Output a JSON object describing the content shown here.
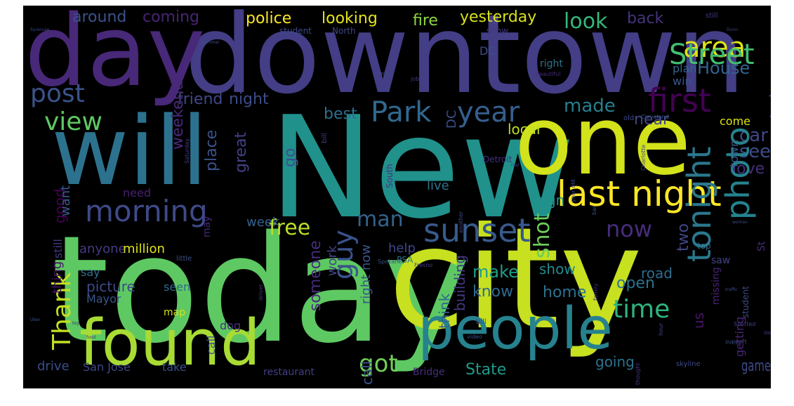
{
  "background_color": "#000000",
  "palette": [
    "#440154",
    "#3b528b",
    "#21918c",
    "#5ec962",
    "#fde725"
  ],
  "words": [
    {
      "text": "today",
      "color": "#5ec962"
    },
    {
      "text": "city",
      "color": "#c7e020"
    },
    {
      "text": "New",
      "color": "#21918c"
    },
    {
      "text": "downtown",
      "color": "#433e85"
    },
    {
      "text": "day",
      "color": "#482878"
    },
    {
      "text": "will",
      "color": "#2c728e"
    },
    {
      "text": "one",
      "color": "#d2e21b"
    },
    {
      "text": "found",
      "color": "#a8db34"
    },
    {
      "text": "people",
      "color": "#26828e"
    },
    {
      "text": "last night",
      "color": "#fde725"
    },
    {
      "text": "morning",
      "color": "#3e4a89"
    },
    {
      "text": "sunset",
      "color": "#38598c"
    },
    {
      "text": "Park",
      "color": "#31688e"
    },
    {
      "text": "year",
      "color": "#355f8d"
    },
    {
      "text": "first",
      "color": "#440154"
    },
    {
      "text": "area",
      "color": "#dde318"
    },
    {
      "text": "Street",
      "color": "#42be71"
    },
    {
      "text": "post",
      "color": "#3b528b"
    },
    {
      "text": "view",
      "color": "#5ec962"
    },
    {
      "text": "tonight",
      "color": "#2a788e"
    },
    {
      "text": "now",
      "color": "#472c7a"
    },
    {
      "text": "photo",
      "color": "#25838e"
    },
    {
      "text": "time",
      "color": "#2fb47c"
    },
    {
      "text": "guy",
      "color": "#3a538b"
    },
    {
      "text": "got",
      "color": "#70cf57"
    },
    {
      "text": "Thank",
      "color": "#c2df23"
    },
    {
      "text": "free",
      "color": "#bade28"
    },
    {
      "text": "man",
      "color": "#33638d"
    },
    {
      "text": "shot",
      "color": "#6ccd5a"
    },
    {
      "text": "look",
      "color": "#35b779"
    },
    {
      "text": "House",
      "color": "#32648e"
    },
    {
      "text": "back",
      "color": "#46327e"
    },
    {
      "text": "car",
      "color": "#404688"
    },
    {
      "text": "see",
      "color": "#3d4d8a"
    },
    {
      "text": "love",
      "color": "#472f7d"
    },
    {
      "text": "make",
      "color": "#1f9e89"
    },
    {
      "text": "show",
      "color": "#238a8d"
    },
    {
      "text": "open",
      "color": "#2c738e"
    },
    {
      "text": "home",
      "color": "#2d708e"
    },
    {
      "text": "know",
      "color": "#306a8e"
    },
    {
      "text": "made",
      "color": "#277f8e"
    },
    {
      "text": "yesterday",
      "color": "#d8e219"
    },
    {
      "text": "police",
      "color": "#fde725"
    },
    {
      "text": "looking",
      "color": "#e5e419"
    },
    {
      "text": "around",
      "color": "#3b528b"
    },
    {
      "text": "coming",
      "color": "#482475"
    },
    {
      "text": "fire",
      "color": "#8fd744"
    },
    {
      "text": "friend",
      "color": "#3f4889"
    },
    {
      "text": "night",
      "color": "#3e4c8a"
    },
    {
      "text": "best",
      "color": "#2e6e8e"
    },
    {
      "text": "near",
      "color": "#414487"
    },
    {
      "text": "weekend",
      "color": "#482979"
    },
    {
      "text": "place",
      "color": "#3b528b"
    },
    {
      "text": "great",
      "color": "#424186"
    },
    {
      "text": "go",
      "color": "#3c4f8a"
    },
    {
      "text": "local",
      "color": "#bddf26"
    },
    {
      "text": "live",
      "color": "#2c738e"
    },
    {
      "text": "sign",
      "color": "#1f948c"
    },
    {
      "text": "two",
      "color": "#404588"
    },
    {
      "text": "State",
      "color": "#1e9b8a"
    },
    {
      "text": "going",
      "color": "#2c728e"
    },
    {
      "text": "road",
      "color": "#2e6d8e"
    },
    {
      "text": "game",
      "color": "#3e4a89"
    },
    {
      "text": "us",
      "color": "#471365"
    },
    {
      "text": "need",
      "color": "#482173"
    },
    {
      "text": "anyone",
      "color": "#443a83"
    },
    {
      "text": "million",
      "color": "#dfe318"
    },
    {
      "text": "help",
      "color": "#3f4788"
    },
    {
      "text": "week",
      "color": "#33638d"
    },
    {
      "text": "vote",
      "color": "#453781"
    },
    {
      "text": "work",
      "color": "#414487"
    },
    {
      "text": "someone",
      "color": "#472d7b"
    },
    {
      "text": "good",
      "color": "#440154"
    },
    {
      "text": "want",
      "color": "#375b8d"
    },
    {
      "text": "building",
      "color": "#453882"
    },
    {
      "text": "picture",
      "color": "#3e4989"
    },
    {
      "text": "Mayor",
      "color": "#38588c"
    },
    {
      "text": "say",
      "color": "#2d718e"
    },
    {
      "text": "seen",
      "color": "#2f6b8e"
    },
    {
      "text": "think",
      "color": "#31678e"
    },
    {
      "text": "map",
      "color": "#d5e21a"
    },
    {
      "text": "dog",
      "color": "#46307e"
    },
    {
      "text": "call",
      "color": "#3a548c"
    },
    {
      "text": "drive",
      "color": "#3c4f8a"
    },
    {
      "text": "San Jose",
      "color": "#3f4889"
    },
    {
      "text": "take",
      "color": "#3d4e8a"
    },
    {
      "text": "restaurant",
      "color": "#433e85"
    },
    {
      "text": "Bridge",
      "color": "#472e7c"
    },
    {
      "text": "right now",
      "color": "#3a548c"
    },
    {
      "text": "still",
      "color": "#453781"
    },
    {
      "text": "thing",
      "color": "#471365"
    },
    {
      "text": "may",
      "color": "#482878"
    },
    {
      "text": "little",
      "color": "#3b518b"
    },
    {
      "text": "PSA",
      "color": "#2a778e"
    },
    {
      "text": "DC",
      "color": "#3d4e8a"
    },
    {
      "text": "right",
      "color": "#2c728e"
    },
    {
      "text": "plan",
      "color": "#32648e"
    },
    {
      "text": "win",
      "color": "#3b528b"
    },
    {
      "text": "come",
      "color": "#dde318"
    },
    {
      "text": "took",
      "color": "#3e4c8a"
    },
    {
      "text": "town",
      "color": "#375b8d"
    },
    {
      "text": "saw",
      "color": "#414287"
    },
    {
      "text": "missing",
      "color": "#482475"
    },
    {
      "text": "St",
      "color": "#472c7a"
    },
    {
      "text": "top",
      "color": "#2f6c8e"
    },
    {
      "text": "getting",
      "color": "#482576"
    },
    {
      "text": "student",
      "color": "#3e4a89"
    },
    {
      "text": "North",
      "color": "#3f4788"
    },
    {
      "text": "snow",
      "color": "#453781"
    },
    {
      "text": "Detroit",
      "color": "#46307e"
    },
    {
      "text": "South",
      "color": "#453581"
    },
    {
      "text": "bill",
      "color": "#433e85"
    },
    {
      "text": "video",
      "color": "#3d4e8a"
    },
    {
      "text": "beautiful",
      "color": "#472d7b"
    },
    {
      "text": "old",
      "color": "#3e4989"
    },
    {
      "text": "Cleveland",
      "color": "#38588c"
    },
    {
      "text": "job",
      "color": "#443a83"
    },
    {
      "text": "Spokane",
      "color": "#3b518b"
    },
    {
      "text": "Fresno",
      "color": "#433e85"
    },
    {
      "text": "Durham",
      "color": "#404688"
    },
    {
      "text": "Nashville",
      "color": "#414487"
    },
    {
      "text": "Charlotte",
      "color": "#3e4a89"
    },
    {
      "text": "Net Neutrality",
      "color": "#38588c"
    },
    {
      "text": "Orlando",
      "color": "#453781"
    },
    {
      "text": "Florida",
      "color": "#3b528b"
    },
    {
      "text": "Memphis",
      "color": "#472d7b"
    },
    {
      "text": "Pittsburgh",
      "color": "#3e4c8a"
    },
    {
      "text": "Buffalo",
      "color": "#414487"
    },
    {
      "text": "Dayton",
      "color": "#3b518b"
    },
    {
      "text": "Chicago",
      "color": "#453781"
    },
    {
      "text": "Seattle",
      "color": "#3f4788"
    },
    {
      "text": "Austin",
      "color": "#3d4e8a"
    },
    {
      "text": "Las Vegas",
      "color": "#424186"
    },
    {
      "text": "El Paso",
      "color": "#3b528b"
    },
    {
      "text": "Des Moines",
      "color": "#46307e"
    },
    {
      "text": "Baltimore",
      "color": "#443a83"
    },
    {
      "text": "Milwaukee",
      "color": "#3e4989"
    },
    {
      "text": "New York",
      "color": "#414487"
    },
    {
      "text": "Dallas",
      "color": "#3b518b"
    },
    {
      "text": "Miami",
      "color": "#453781"
    },
    {
      "text": "Tampa",
      "color": "#3e4c8a"
    },
    {
      "text": "Update",
      "color": "#472d7b"
    },
    {
      "text": "sunrise",
      "color": "#3b528b"
    },
    {
      "text": "neighborhood",
      "color": "#424186"
    },
    {
      "text": "school",
      "color": "#3f4788"
    },
    {
      "text": "summer",
      "color": "#3d4e8a"
    },
    {
      "text": "Saturday",
      "color": "#433e85"
    },
    {
      "text": "skyline",
      "color": "#3e4a89"
    },
    {
      "text": "thought",
      "color": "#453781"
    },
    {
      "text": "support",
      "color": "#3b518b"
    },
    {
      "text": "family",
      "color": "#472d7b"
    },
    {
      "text": "Spotted",
      "color": "#414487"
    },
    {
      "text": "traffic",
      "color": "#3e4c8a"
    },
    {
      "text": "driver",
      "color": "#453581"
    },
    {
      "text": "year old",
      "color": "#3f4788"
    },
    {
      "text": "bar",
      "color": "#3b528b"
    },
    {
      "text": "fall",
      "color": "#433e85"
    },
    {
      "text": "run",
      "color": "#3e4989"
    },
    {
      "text": "law",
      "color": "#46307e"
    },
    {
      "text": "hour",
      "color": "#414487"
    },
    {
      "text": "really",
      "color": "#3b518b"
    },
    {
      "text": "another",
      "color": "#3f4788"
    },
    {
      "text": "spring",
      "color": "#453781"
    },
    {
      "text": "woman",
      "color": "#3e4c8a"
    },
    {
      "text": "shop",
      "color": "#424186"
    },
    {
      "text": "Uber",
      "color": "#3b528b"
    },
    {
      "text": "Ohio",
      "color": "#3d4e8a"
    },
    {
      "text": "big",
      "color": "#472d7b"
    },
    {
      "text": "food",
      "color": "#453581"
    },
    {
      "text": "real",
      "color": "#3f4788"
    },
    {
      "text": "Dunn",
      "color": "#414487"
    },
    {
      "text": "Syracuse",
      "color": "#3e4989"
    },
    {
      "text": "Houston",
      "color": "#443a83"
    },
    {
      "text": "Albany",
      "color": "#46307e"
    },
    {
      "text": "Reno",
      "color": "#3b518b"
    },
    {
      "text": "Boise",
      "color": "#453781"
    },
    {
      "text": "Tulsa",
      "color": "#3e4c8a"
    }
  ]
}
